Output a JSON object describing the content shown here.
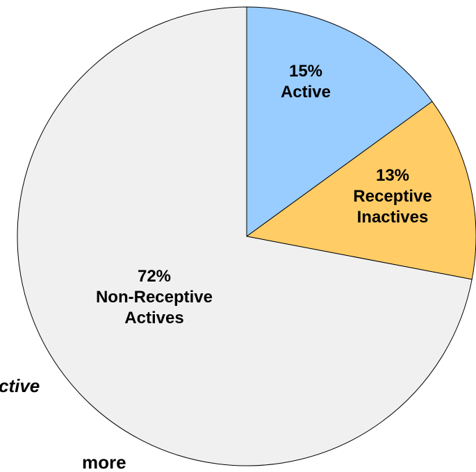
{
  "chart_data": {
    "type": "pie",
    "categories": [
      "Active",
      "Receptive Inactives",
      "Non-Receptive Actives"
    ],
    "values": [
      15,
      13,
      72
    ],
    "value_labels": [
      "15%",
      "13%",
      "72%"
    ],
    "colors": [
      "#99ccff",
      "#ffcc66",
      "#f0f0f0"
    ],
    "annotations": [
      "ctive",
      "more"
    ]
  }
}
